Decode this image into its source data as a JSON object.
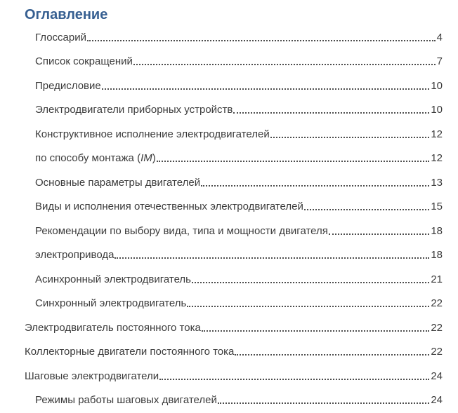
{
  "title": "Оглавление",
  "colors": {
    "title": "#365f91",
    "text": "#3b3b3b",
    "background": "#ffffff"
  },
  "toc": {
    "entries": [
      {
        "label": "Глоссарий",
        "page": "4",
        "level": 1
      },
      {
        "label": "Список сокращений",
        "page": "7",
        "level": 1
      },
      {
        "label": "Предисловие",
        "page": "10",
        "level": 1
      },
      {
        "label": "Электродвигатели приборных устройств",
        "page": "10",
        "level": 1
      },
      {
        "label": "Конструктивное исполнение электродвигателей",
        "page": "12",
        "level": 1
      },
      {
        "pre": "по способу монтажа (",
        "italic": "IM",
        "post": ")",
        "page": "12",
        "level": 1
      },
      {
        "label": "Основные параметры двигателей",
        "page": "13",
        "level": 1
      },
      {
        "label": "Виды и исполнения отечественных электродвигателей",
        "page": "15",
        "level": 1
      },
      {
        "label": "Рекомендации по выбору вида, типа и мощности двигателя",
        "page": "18",
        "level": 1
      },
      {
        "label": "электропривода",
        "page": "18",
        "level": 1
      },
      {
        "label": "Асинхронный электродвигатель",
        "page": "21",
        "level": 1
      },
      {
        "label": "Синхронный электродвигатель",
        "page": "22",
        "level": 1
      },
      {
        "label": "Электродвигатель постоянного тока",
        "page": "22",
        "level": 0
      },
      {
        "label": "Коллекторные двигатели постоянного тока",
        "page": "22",
        "level": 0
      },
      {
        "label": "Шаговые электродвигатели",
        "page": "24",
        "level": 0
      },
      {
        "label": "Режимы работы шаговых двигателей",
        "page": "24",
        "level": 1
      }
    ]
  }
}
